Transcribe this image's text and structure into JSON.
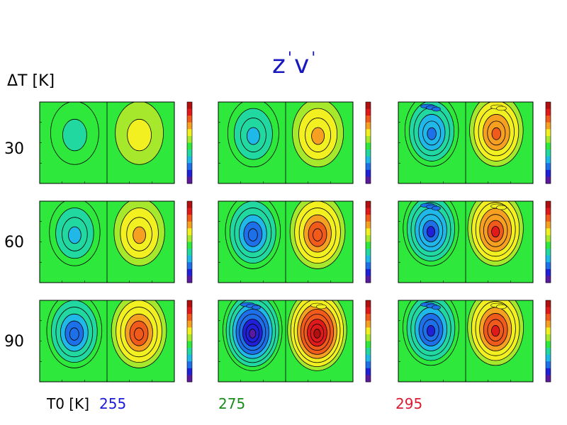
{
  "title": {
    "base_z": "z",
    "base_v": "v",
    "prime": "'"
  },
  "row_axis_label": "ΔT [K]",
  "col_axis_label": "T0 [K]",
  "chart_data": {
    "type": "heatmap",
    "title": "z'v'",
    "rows": {
      "label": "ΔT [K]",
      "values": [
        30,
        60,
        90
      ]
    },
    "columns": {
      "label": "T0 [K]",
      "values": [
        255,
        275,
        295
      ],
      "colors": [
        "#1a1adc",
        "#1a8c1a",
        "#dc1a32"
      ]
    },
    "panel_description": "Each panel shows a latitude-pressure contour map of eddy geopotential flux z'v' with an antisymmetric dipole (negative cell in the southern hemisphere, positive cell in the northern hemisphere).",
    "colormap": [
      "#5a1aa0",
      "#2020d8",
      "#1e70e8",
      "#1fb8e8",
      "#20d8a0",
      "#2ee83c",
      "#a6e82c",
      "#f2f020",
      "#f5a020",
      "#f05a1a",
      "#e01a1a",
      "#b01010"
    ],
    "panels": [
      {
        "row": 0,
        "col": 0,
        "amp": 0.25,
        "sharp": 0.0,
        "upper_noise": 0.05
      },
      {
        "row": 0,
        "col": 1,
        "amp": 0.45,
        "sharp": 0.0,
        "upper_noise": 0.1
      },
      {
        "row": 0,
        "col": 2,
        "amp": 0.62,
        "sharp": 0.4,
        "upper_noise": 0.4
      },
      {
        "row": 1,
        "col": 0,
        "amp": 0.42,
        "sharp": 0.0,
        "upper_noise": 0.05
      },
      {
        "row": 1,
        "col": 1,
        "amp": 0.72,
        "sharp": 0.1,
        "upper_noise": 0.15
      },
      {
        "row": 1,
        "col": 2,
        "amp": 0.75,
        "sharp": 0.6,
        "upper_noise": 0.6
      },
      {
        "row": 2,
        "col": 0,
        "amp": 0.72,
        "sharp": 0.1,
        "upper_noise": 0.1
      },
      {
        "row": 2,
        "col": 1,
        "amp": 1.0,
        "sharp": 0.2,
        "upper_noise": 0.3
      },
      {
        "row": 2,
        "col": 2,
        "amp": 0.78,
        "sharp": 0.6,
        "upper_noise": 0.6
      }
    ]
  }
}
